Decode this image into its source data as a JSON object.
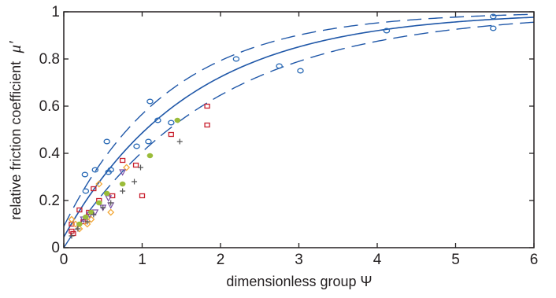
{
  "chart_data": {
    "type": "scatter",
    "title": "",
    "xlabel": "dimensionless group Ψ",
    "ylabel": "relative friction coefficient",
    "ylabel_symbol": "μ′",
    "xlim": [
      0,
      6
    ],
    "ylim": [
      0,
      1
    ],
    "xticks": [
      0,
      1,
      2,
      3,
      4,
      5,
      6
    ],
    "yticks": [
      0,
      0.2,
      0.4,
      0.6,
      0.8,
      1
    ],
    "xtick_labels": [
      "0",
      "1",
      "2",
      "3",
      "4",
      "5",
      "6"
    ],
    "ytick_labels": [
      "0",
      "0.2",
      "0.4",
      "0.6",
      "0.8",
      "1"
    ],
    "grid": false,
    "legend": "none",
    "colors": {
      "fit": "#1f57a8",
      "axis": "#231f20",
      "circle": "#2a6ab5",
      "square": "#c8202e",
      "diamond": "#f3a93a",
      "triangle": "#7b4fa6",
      "dot": "#9bbc3a",
      "plus": "#555555"
    },
    "series": [
      {
        "marker": "circle",
        "color": "#2a6ab5",
        "points": [
          [
            0.27,
            0.31
          ],
          [
            0.28,
            0.24
          ],
          [
            0.4,
            0.33
          ],
          [
            0.55,
            0.45
          ],
          [
            0.57,
            0.32
          ],
          [
            0.6,
            0.33
          ],
          [
            0.93,
            0.43
          ],
          [
            1.08,
            0.45
          ],
          [
            1.1,
            0.62
          ],
          [
            1.2,
            0.54
          ],
          [
            1.37,
            0.53
          ],
          [
            2.2,
            0.8
          ],
          [
            2.75,
            0.77
          ],
          [
            3.02,
            0.75
          ],
          [
            4.12,
            0.92
          ],
          [
            5.48,
            0.98
          ],
          [
            5.48,
            0.93
          ]
        ]
      },
      {
        "marker": "square",
        "color": "#c8202e",
        "points": [
          [
            0.1,
            0.1
          ],
          [
            0.1,
            0.07
          ],
          [
            0.12,
            0.06
          ],
          [
            0.2,
            0.16
          ],
          [
            0.25,
            0.11
          ],
          [
            0.32,
            0.15
          ],
          [
            0.38,
            0.25
          ],
          [
            0.45,
            0.2
          ],
          [
            0.62,
            0.22
          ],
          [
            0.75,
            0.37
          ],
          [
            0.92,
            0.35
          ],
          [
            1.0,
            0.22
          ],
          [
            1.37,
            0.48
          ],
          [
            1.83,
            0.6
          ],
          [
            1.83,
            0.52
          ]
        ]
      },
      {
        "marker": "diamond",
        "color": "#f3a93a",
        "points": [
          [
            0.1,
            0.12
          ],
          [
            0.15,
            0.1
          ],
          [
            0.2,
            0.08
          ],
          [
            0.3,
            0.1
          ],
          [
            0.35,
            0.12
          ],
          [
            0.45,
            0.27
          ],
          [
            0.6,
            0.15
          ],
          [
            0.8,
            0.34
          ]
        ]
      },
      {
        "marker": "triangle",
        "color": "#7b4fa6",
        "points": [
          [
            0.25,
            0.12
          ],
          [
            0.33,
            0.14
          ],
          [
            0.4,
            0.15
          ],
          [
            0.5,
            0.17
          ],
          [
            0.57,
            0.21
          ],
          [
            0.6,
            0.18
          ],
          [
            0.75,
            0.32
          ]
        ]
      },
      {
        "marker": "dot",
        "color": "#9bbc3a",
        "points": [
          [
            0.2,
            0.1
          ],
          [
            0.28,
            0.13
          ],
          [
            0.35,
            0.15
          ],
          [
            0.45,
            0.19
          ],
          [
            0.55,
            0.23
          ],
          [
            0.75,
            0.27
          ],
          [
            1.1,
            0.39
          ],
          [
            1.45,
            0.54
          ]
        ]
      },
      {
        "marker": "plus",
        "color": "#555555",
        "points": [
          [
            0.1,
            0.05
          ],
          [
            0.18,
            0.08
          ],
          [
            0.3,
            0.11
          ],
          [
            0.38,
            0.14
          ],
          [
            0.5,
            0.17
          ],
          [
            0.6,
            0.19
          ],
          [
            0.75,
            0.24
          ],
          [
            0.9,
            0.28
          ],
          [
            0.98,
            0.34
          ],
          [
            1.48,
            0.45
          ]
        ]
      }
    ],
    "fit": {
      "model": "1 - exp(-k*x)",
      "center": {
        "offset": 0.045,
        "k": 0.62
      },
      "upper": {
        "offset": 0.09,
        "k": 0.74
      },
      "lower": {
        "offset": 0.0,
        "k": 0.52
      }
    }
  }
}
